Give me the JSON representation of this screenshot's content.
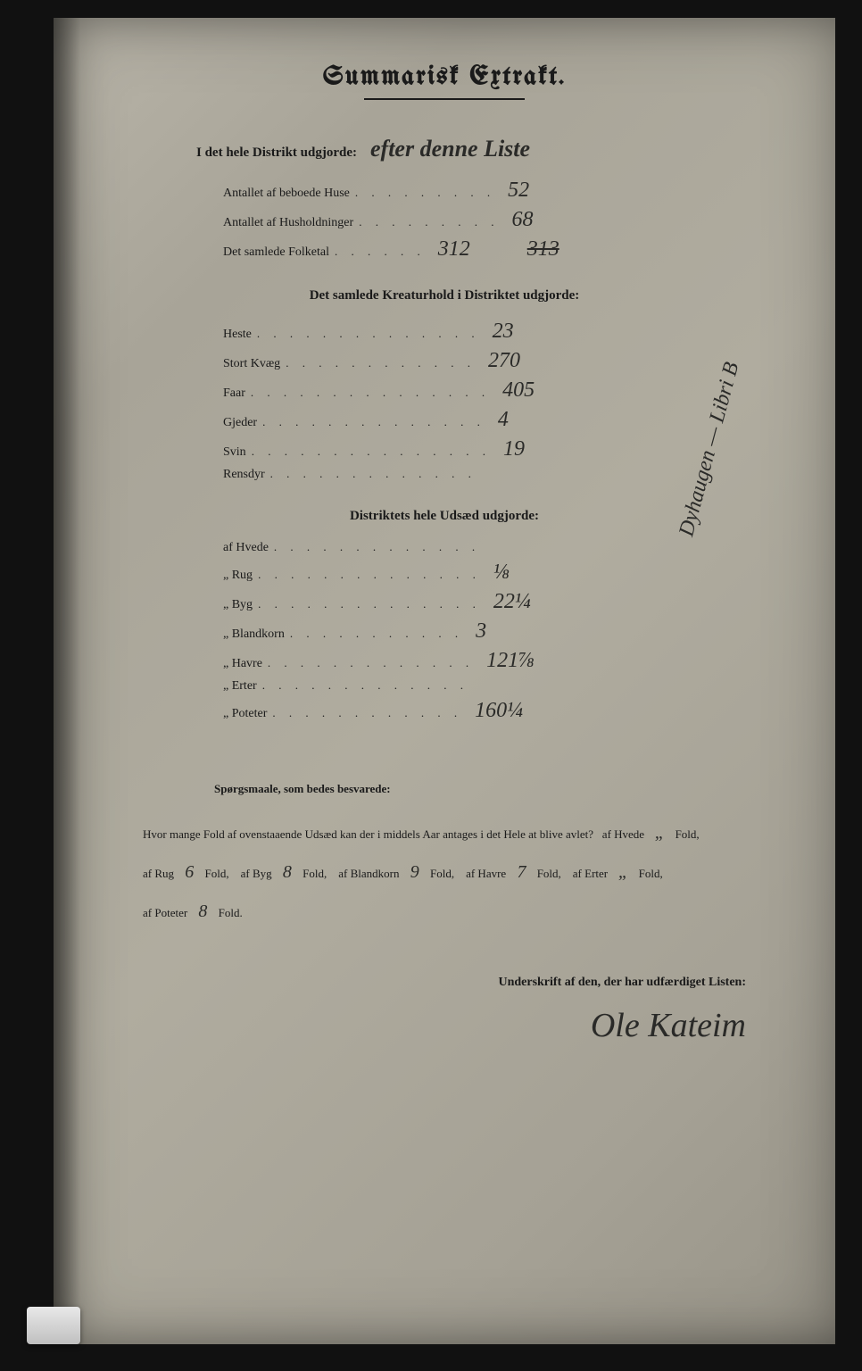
{
  "title": "Summarisk Extrakt.",
  "district_header_printed": "I det hele Distrikt udgjorde:",
  "district_header_hand": "efter denne Liste",
  "district_rows": [
    {
      "label": "Antallet af beboede Huse",
      "dots": ". . . . . . . . .",
      "value": "52"
    },
    {
      "label": "Antallet af Husholdninger",
      "dots": ". . . . . . . . .",
      "value": "68"
    },
    {
      "label": "Det samlede Folketal",
      "dots": ". . . . . .",
      "value_pre": "312",
      "value": "313",
      "struck": true
    }
  ],
  "livestock_header": "Det samlede Kreaturhold i Distriktet udgjorde:",
  "livestock_rows": [
    {
      "label": "Heste",
      "dots": ". . . . . . . . . . . . . .",
      "value": "23"
    },
    {
      "label": "Stort Kvæg",
      "dots": ". . . . . . . . . . . .",
      "value": "270"
    },
    {
      "label": "Faar",
      "dots": ". . . . . . . . . . . . . . .",
      "value": "405"
    },
    {
      "label": "Gjeder",
      "dots": ". . . . . . . . . . . . . .",
      "value": "4"
    },
    {
      "label": "Svin",
      "dots": ". . . . . . . . . . . . . . .",
      "value": "19"
    },
    {
      "label": "Rensdyr",
      "dots": ". . . . . . . . . . . . .",
      "value": ""
    }
  ],
  "seed_header": "Distriktets hele Udsæd udgjorde:",
  "seed_rows": [
    {
      "label": "af Hvede",
      "dots": ". . . . . . . . . . . . .",
      "value": ""
    },
    {
      "label": "„ Rug",
      "dots": ". . . . . . . . . . . . . .",
      "value": "⅛"
    },
    {
      "label": "„ Byg",
      "dots": ". . . . . . . . . . . . . .",
      "value": "22¼"
    },
    {
      "label": "„ Blandkorn",
      "dots": ". . . . . . . . . . .",
      "value": "3"
    },
    {
      "label": "„ Havre",
      "dots": ". . . . . . . . . . . . .",
      "value": "121⅞"
    },
    {
      "label": "„ Erter",
      "dots": ". . . . . . . . . . . . .",
      "value": ""
    },
    {
      "label": "„ Poteter",
      "dots": ". . . . . . . . . . . .",
      "value": "160¼"
    }
  ],
  "margin_note": "Dyhaugen — Libri B",
  "questions": {
    "header": "Spørgsmaale, som bedes besvarede:",
    "intro": "Hvor mange Fold af ovenstaaende Udsæd kan der i middels Aar antages i det Hele at blive avlet?",
    "items": [
      {
        "pre": "af Hvede",
        "val": "„",
        "post": "Fold,"
      },
      {
        "pre": "af Rug",
        "val": "6",
        "post": "Fold,"
      },
      {
        "pre": "af Byg",
        "val": "8",
        "post": "Fold,"
      },
      {
        "pre": "af Blandkorn",
        "val": "9",
        "post": "Fold,"
      },
      {
        "pre": "af Havre",
        "val": "7",
        "post": "Fold,"
      },
      {
        "pre": "af Erter",
        "val": "„",
        "post": "Fold,"
      },
      {
        "pre": "af Poteter",
        "val": "8",
        "post": "Fold."
      }
    ]
  },
  "signature_label": "Underskrift af den, der har udfærdiget Listen:",
  "signature": "Ole Kateim",
  "colors": {
    "paper": "#a8a498",
    "ink_print": "#1a1a1a",
    "ink_hand": "#2a2a28",
    "background": "#0a0a0a"
  },
  "typography": {
    "title_size_pt": 22,
    "body_size_pt": 11,
    "hand_size_pt": 18
  }
}
